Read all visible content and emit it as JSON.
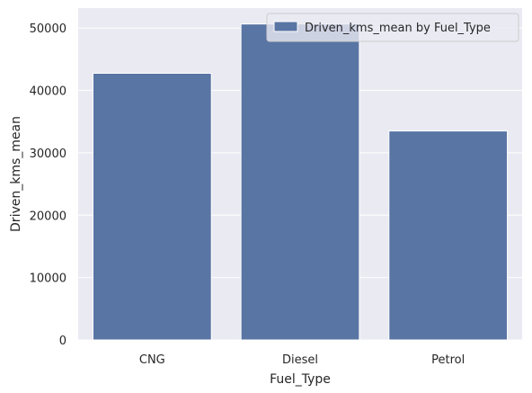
{
  "colors": {
    "plot_background": "#eaeaf2",
    "grid": "#ffffff",
    "bar_fill": "#5975a4",
    "bar_edge": "#ffffff",
    "text": "#262626",
    "legend_background": "#eaeaf2"
  },
  "chart_data": {
    "type": "bar",
    "title": "",
    "xlabel": "Fuel_Type",
    "ylabel": "Driven_kms_mean",
    "categories": [
      "CNG",
      "Diesel",
      "Petrol"
    ],
    "series": [
      {
        "name": "Driven_kms_mean by Fuel_Type",
        "values": [
          42750,
          50650,
          33500
        ]
      }
    ],
    "ylim": [
      0,
      53200
    ],
    "yticks": [
      0,
      10000,
      20000,
      30000,
      40000,
      50000
    ],
    "grid": true,
    "legend_position": "top-right"
  }
}
